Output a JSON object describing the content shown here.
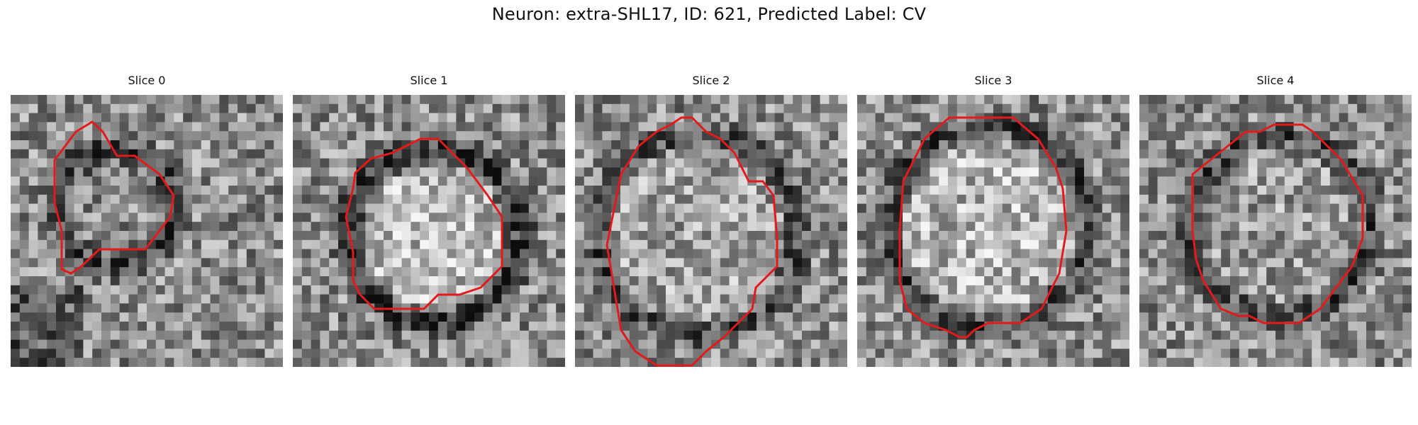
{
  "figure": {
    "title": "Neuron: extra-SHL17, ID: 621, Predicted Label: CV"
  },
  "panels": [
    {
      "title": "Slice 0"
    },
    {
      "title": "Slice 1"
    },
    {
      "title": "Slice 2"
    },
    {
      "title": "Slice 3"
    },
    {
      "title": "Slice 4"
    }
  ],
  "colors": {
    "contour": "#e31a1c",
    "background": "#ffffff"
  }
}
